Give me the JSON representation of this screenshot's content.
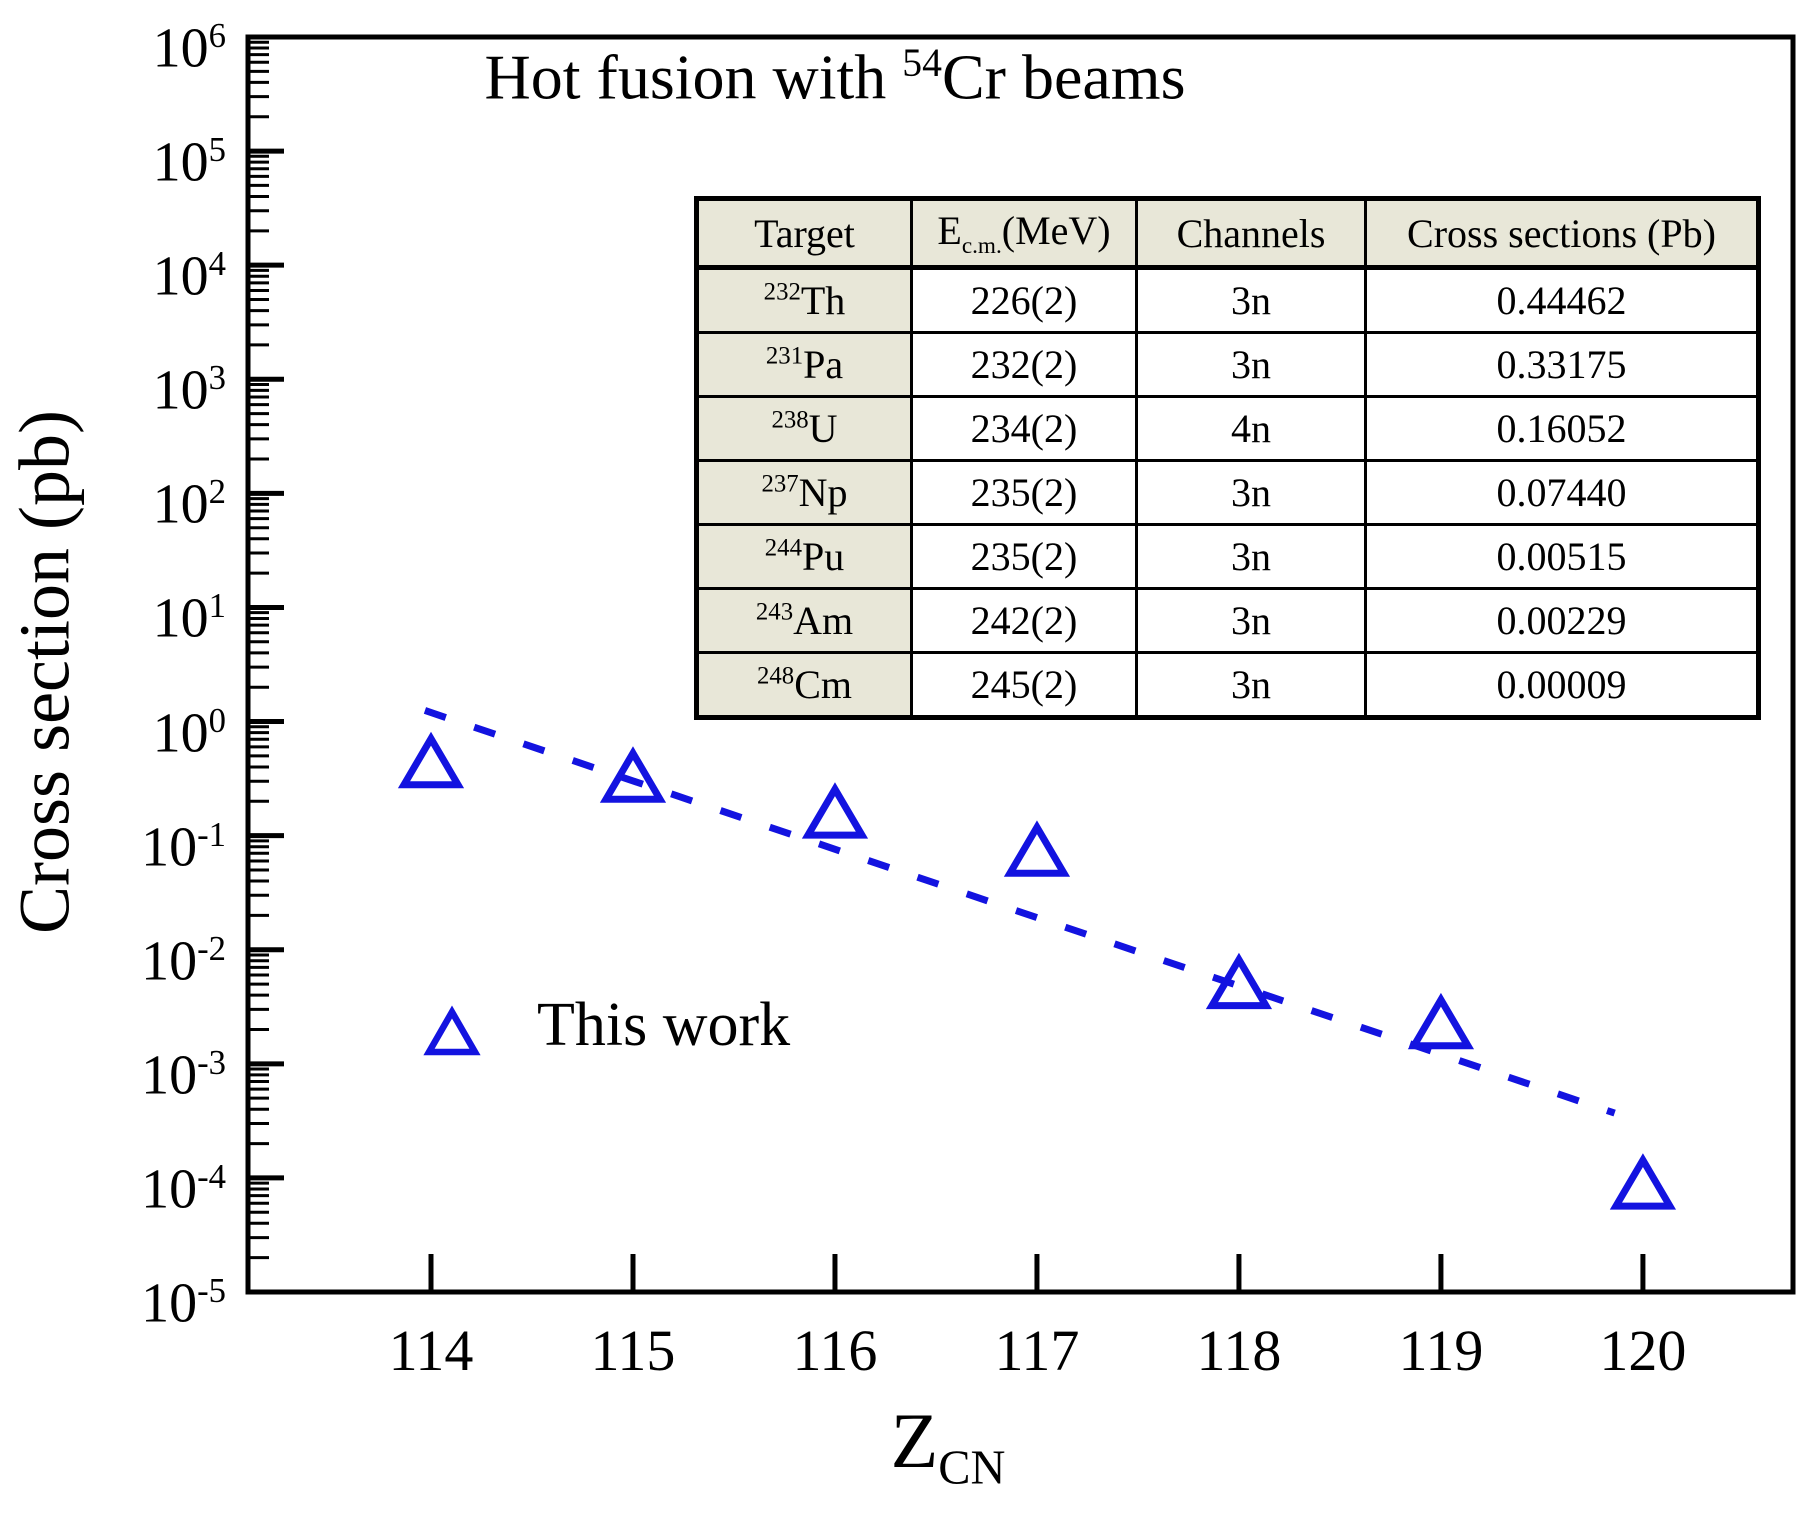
{
  "figure": {
    "title": {
      "pre": "Hot fusion with ",
      "sup": "54",
      "post": "Cr beams"
    },
    "y_axis_label": "Cross section (pb)",
    "x_axis_label": {
      "main": "Z",
      "sub": "CN"
    },
    "legend": {
      "label": "This work",
      "marker": "open-triangle"
    }
  },
  "table": {
    "headers": [
      {
        "text": "Target"
      },
      {
        "pre": "E",
        "sub": "c.m.",
        "post": "(MeV)"
      },
      {
        "text": "Channels"
      },
      {
        "text": "Cross sections (Pb)"
      }
    ],
    "rows": [
      {
        "target": {
          "sup": "232",
          "el": "Th"
        },
        "ecm": "226(2)",
        "channel": "3n",
        "cross_section": "0.44462"
      },
      {
        "target": {
          "sup": "231",
          "el": "Pa"
        },
        "ecm": "232(2)",
        "channel": "3n",
        "cross_section": "0.33175"
      },
      {
        "target": {
          "sup": "238",
          "el": "U"
        },
        "ecm": "234(2)",
        "channel": "4n",
        "cross_section": "0.16052"
      },
      {
        "target": {
          "sup": "237",
          "el": "Np"
        },
        "ecm": "235(2)",
        "channel": "3n",
        "cross_section": "0.07440"
      },
      {
        "target": {
          "sup": "244",
          "el": "Pu"
        },
        "ecm": "235(2)",
        "channel": "3n",
        "cross_section": "0.00515"
      },
      {
        "target": {
          "sup": "243",
          "el": "Am"
        },
        "ecm": "242(2)",
        "channel": "3n",
        "cross_section": "0.00229"
      },
      {
        "target": {
          "sup": "248",
          "el": "Cm"
        },
        "ecm": "245(2)",
        "channel": "3n",
        "cross_section": "0.00009"
      }
    ]
  },
  "chart_data": {
    "type": "scatter",
    "title": "Hot fusion with 54Cr beams",
    "xlabel": "Z_CN",
    "ylabel": "Cross section (pb)",
    "x_scale": "linear",
    "y_scale": "log",
    "xlim": [
      113.094,
      120.743
    ],
    "ylim": [
      1e-05,
      1000000
    ],
    "x_ticks": [
      114,
      115,
      116,
      117,
      118,
      119,
      120
    ],
    "y_tick_exponents": [
      6,
      5,
      4,
      3,
      2,
      1,
      0,
      -1,
      -2,
      -3,
      -4,
      -5
    ],
    "grid": false,
    "legend_position": "inside-left-middle",
    "series": [
      {
        "name": "This work",
        "marker": "open-triangle",
        "color": "#1313e0",
        "points": [
          [
            114,
            0.44462
          ],
          [
            115,
            0.33175
          ],
          [
            116,
            0.16052
          ],
          [
            117,
            0.0744
          ],
          [
            118,
            0.00515
          ],
          [
            119,
            0.00229
          ],
          [
            120,
            9e-05
          ]
        ]
      }
    ],
    "fit_line": {
      "style": "dashed",
      "color": "#1313e0",
      "from": [
        113.97,
        1.25
      ],
      "to": [
        119.86,
        0.00037
      ]
    },
    "colors": {
      "marker_blue": "#1313e0",
      "axis_black": "#000000",
      "table_header_bg": "#e8e7d8",
      "background": "#ffffff"
    }
  }
}
